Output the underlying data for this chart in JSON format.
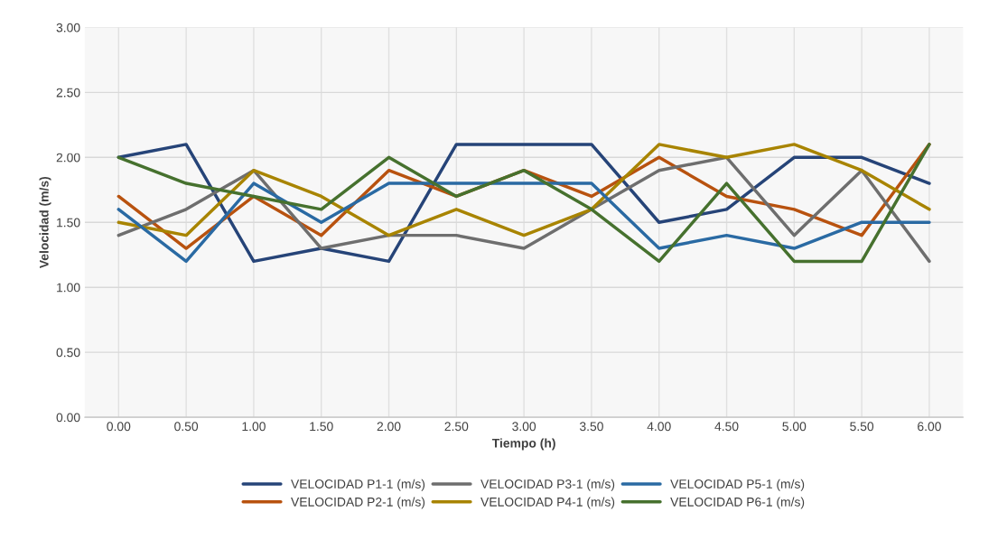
{
  "chart_data": {
    "type": "line",
    "xlabel": "Tiempo (h)",
    "ylabel": "Velocidad (m/s)",
    "categories": [
      "0.00",
      "0.50",
      "1.00",
      "1.50",
      "2.00",
      "2.50",
      "3.00",
      "3.50",
      "4.00",
      "4.50",
      "5.00",
      "5.50",
      "6.00"
    ],
    "ylim": [
      0,
      3
    ],
    "yticks": [
      {
        "value": 0,
        "label": "0.00"
      },
      {
        "value": 0.5,
        "label": "0.50"
      },
      {
        "value": 1,
        "label": "1.00"
      },
      {
        "value": 1.5,
        "label": "1.50"
      },
      {
        "value": 2,
        "label": "2.00"
      },
      {
        "value": 2.5,
        "label": "2.50"
      },
      {
        "value": 3,
        "label": "3.00"
      }
    ],
    "grid": true,
    "legend": "bottom",
    "marker": "none",
    "line_style": "solid",
    "series": [
      {
        "name": "VELOCIDAD P1-1 (m/s)",
        "color": "#264478",
        "values": [
          2.0,
          2.1,
          1.2,
          1.3,
          1.2,
          2.1,
          2.1,
          2.1,
          1.5,
          1.6,
          2.0,
          2.0,
          1.8
        ]
      },
      {
        "name": "VELOCIDAD P2-1 (m/s)",
        "color": "#b8520f",
        "values": [
          1.7,
          1.3,
          1.7,
          1.4,
          1.9,
          1.7,
          1.9,
          1.7,
          2.0,
          1.7,
          1.6,
          1.4,
          2.1
        ]
      },
      {
        "name": "VELOCIDAD P3-1 (m/s)",
        "color": "#6e6e6e",
        "values": [
          1.4,
          1.6,
          1.9,
          1.3,
          1.4,
          1.4,
          1.3,
          1.6,
          1.9,
          2.0,
          1.4,
          1.9,
          1.2
        ]
      },
      {
        "name": "VELOCIDAD P4-1 (m/s)",
        "color": "#a88400",
        "values": [
          1.5,
          1.4,
          1.9,
          1.7,
          1.4,
          1.6,
          1.4,
          1.6,
          2.1,
          2.0,
          2.1,
          1.9,
          1.6
        ]
      },
      {
        "name": "VELOCIDAD P5-1 (m/s)",
        "color": "#2a6aa3",
        "values": [
          1.6,
          1.2,
          1.8,
          1.5,
          1.8,
          1.8,
          1.8,
          1.8,
          1.3,
          1.4,
          1.3,
          1.5,
          1.5
        ]
      },
      {
        "name": "VELOCIDAD P6-1 (m/s)",
        "color": "#46712e",
        "values": [
          2.0,
          1.8,
          1.7,
          1.6,
          2.0,
          1.7,
          1.9,
          1.6,
          1.2,
          1.8,
          1.2,
          1.2,
          2.1
        ]
      }
    ]
  }
}
